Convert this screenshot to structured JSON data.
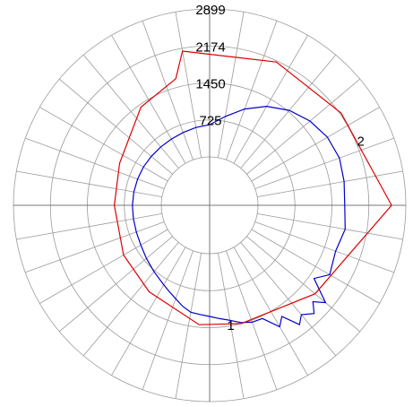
{
  "chart_data": {
    "type": "polar-line",
    "radial_ticks": [
      725,
      1450,
      2174,
      2899
    ],
    "rmax": 2899,
    "angle_step_deg": 10,
    "grid": true,
    "series": [
      {
        "name": "1",
        "color": "#0000cc",
        "points": [
          [
            0,
            630
          ],
          [
            10,
            820
          ],
          [
            20,
            1060
          ],
          [
            30,
            1290
          ],
          [
            40,
            1480
          ],
          [
            50,
            1620
          ],
          [
            60,
            1720
          ],
          [
            70,
            1760
          ],
          [
            80,
            1730
          ],
          [
            90,
            1700
          ],
          [
            100,
            1750
          ],
          [
            110,
            1680
          ],
          [
            120,
            1770
          ],
          [
            125,
            1550
          ],
          [
            130,
            2020
          ],
          [
            133,
            1820
          ],
          [
            136,
            2000
          ],
          [
            140,
            1850
          ],
          [
            143,
            1980
          ],
          [
            147,
            1650
          ],
          [
            150,
            1800
          ],
          [
            155,
            1500
          ],
          [
            160,
            1490
          ],
          [
            165,
            1430
          ],
          [
            170,
            1340
          ],
          [
            175,
            1280
          ],
          [
            180,
            1230
          ],
          [
            185,
            1200
          ],
          [
            190,
            1180
          ],
          [
            195,
            1100
          ],
          [
            200,
            1000
          ],
          [
            205,
            920
          ],
          [
            210,
            850
          ],
          [
            220,
            750
          ],
          [
            230,
            670
          ],
          [
            240,
            610
          ],
          [
            250,
            580
          ],
          [
            260,
            570
          ],
          [
            270,
            565
          ],
          [
            280,
            560
          ],
          [
            290,
            555
          ],
          [
            300,
            550
          ],
          [
            310,
            545
          ],
          [
            320,
            545
          ],
          [
            330,
            550
          ],
          [
            340,
            570
          ],
          [
            350,
            600
          ]
        ]
      },
      {
        "name": "2",
        "color": "#dd0000",
        "points": [
          [
            -10,
            2120
          ],
          [
            25,
            2150
          ],
          [
            55,
            2200
          ],
          [
            90,
            2620
          ],
          [
            130,
            1750
          ],
          [
            165,
            1450
          ],
          [
            185,
            1400
          ],
          [
            215,
            1120
          ],
          [
            240,
            1000
          ],
          [
            270,
            920
          ],
          [
            295,
            1000
          ],
          [
            325,
            1400
          ],
          [
            345,
            1620
          ]
        ]
      }
    ],
    "series_labels": [
      {
        "text": "1",
        "angle": 170,
        "r": 1440
      },
      {
        "text": "2",
        "angle": 67,
        "r": 2270
      }
    ]
  }
}
